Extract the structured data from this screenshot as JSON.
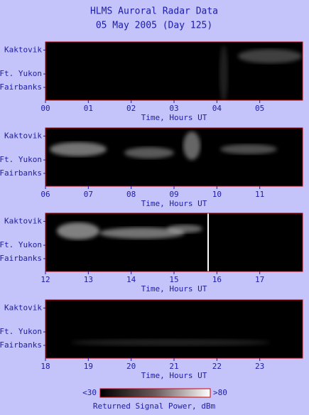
{
  "title": "HLMS Auroral Radar Data",
  "subtitle": "05 May 2005 (Day 125)",
  "stations": [
    "Kaktovik",
    "Ft. Yukon",
    "Fairbanks"
  ],
  "panels": [
    {
      "xlabel": "Time, Hours UT",
      "xlim": [
        0,
        6
      ],
      "xticks": [
        {
          "value": 0,
          "label": "00"
        },
        {
          "value": 1,
          "label": "01"
        },
        {
          "value": 2,
          "label": "02"
        },
        {
          "value": 3,
          "label": "03"
        },
        {
          "value": 4,
          "label": "04"
        },
        {
          "value": 5,
          "label": "05"
        }
      ]
    },
    {
      "xlabel": "Time, Hours UT",
      "xlim": [
        6,
        12
      ],
      "xticks": [
        {
          "value": 6,
          "label": "06"
        },
        {
          "value": 7,
          "label": "07"
        },
        {
          "value": 8,
          "label": "08"
        },
        {
          "value": 9,
          "label": "09"
        },
        10,
        11
      ]
    },
    {
      "xlabel": "Time, Hours UT",
      "xlim": [
        12,
        18
      ],
      "xticks": [
        12,
        13,
        14,
        15,
        16,
        17
      ]
    },
    {
      "xlabel": "Time, Hours UT",
      "xlim": [
        18,
        24
      ],
      "xticks": [
        18,
        19,
        20,
        21,
        22,
        23
      ]
    }
  ],
  "colorbar": {
    "min_label": "<30",
    "max_label": ">80",
    "label": "Returned Signal Power, dBm"
  }
}
